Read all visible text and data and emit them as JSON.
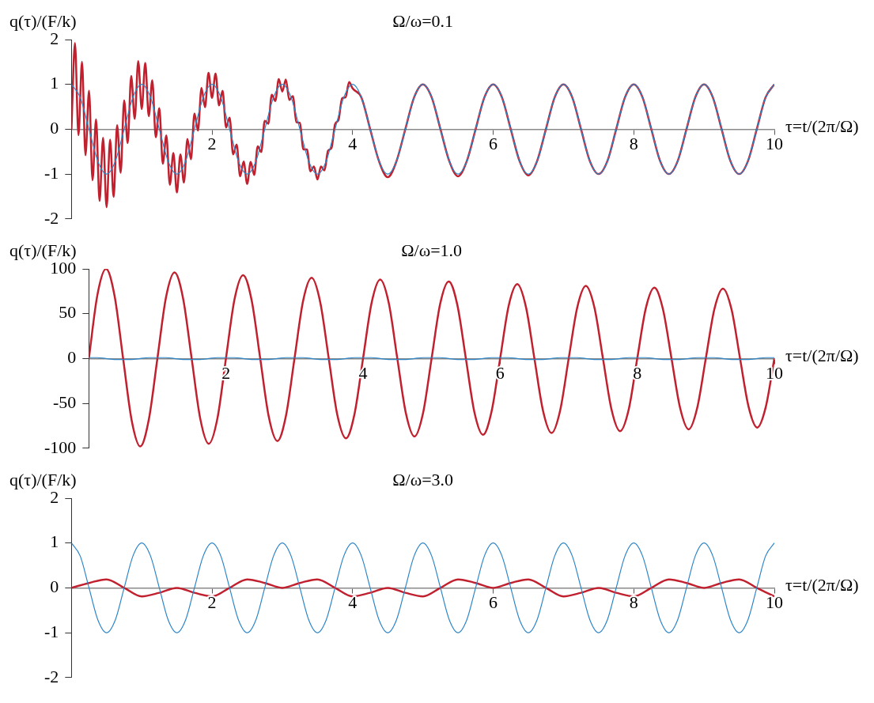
{
  "chart_data": [
    {
      "type": "line",
      "title": "Ω/ω=0.1",
      "xlabel": "τ=t/(2π/Ω)",
      "ylabel": "q(τ)/(F/k)",
      "xlim": [
        0,
        10
      ],
      "xticks": [
        2,
        4,
        6,
        8,
        10
      ],
      "ylim": [
        -2,
        2
      ],
      "yticks": [
        -2,
        -1,
        0,
        1,
        2
      ],
      "x": [
        0,
        0.125,
        0.25,
        0.375,
        0.5,
        0.625,
        0.75,
        0.875,
        1,
        1.125,
        1.25,
        1.375,
        1.5,
        1.625,
        1.75,
        1.875,
        2,
        2.125,
        2.25,
        2.375,
        2.5,
        2.625,
        2.75,
        2.875,
        3,
        3.125,
        3.25,
        3.375,
        3.5,
        3.625,
        3.75,
        3.875,
        4,
        4.125,
        4.25,
        4.375,
        4.5,
        4.625,
        4.75,
        4.875,
        5,
        5.125,
        5.25,
        5.375,
        5.5,
        5.625,
        5.75,
        5.875,
        6,
        6.125,
        6.25,
        6.375,
        6.5,
        6.625,
        6.75,
        6.875,
        7,
        7.125,
        7.25,
        7.375,
        7.5,
        7.625,
        7.75,
        7.875,
        8,
        8.125,
        8.25,
        8.375,
        8.5,
        8.625,
        8.75,
        8.875,
        9,
        9.125,
        9.25,
        9.375,
        9.5,
        9.625,
        9.75,
        9.875,
        10
      ],
      "series": [
        {
          "color": "#2e86c8",
          "values": [
            1,
            0.71,
            0,
            -0.71,
            -1,
            -0.71,
            0,
            0.71,
            1,
            0.71,
            0,
            -0.71,
            -1,
            -0.71,
            0,
            0.71,
            1,
            0.71,
            0,
            -0.71,
            -1,
            -0.71,
            0,
            0.71,
            1,
            0.71,
            0,
            -0.71,
            -1,
            -0.71,
            0,
            0.71,
            1,
            0.71,
            0,
            -0.71,
            -1,
            -0.71,
            0,
            0.71,
            1,
            0.71,
            0,
            -0.71,
            -1,
            -0.71,
            0,
            0.71,
            1,
            0.71,
            0,
            -0.71,
            -1,
            -0.71,
            0,
            0.71,
            1,
            0.71,
            0,
            -0.71,
            -1,
            -0.71,
            0,
            0.71,
            1,
            0.71,
            0,
            -0.71,
            -1,
            -0.71,
            0,
            0.71,
            1,
            0.71,
            0,
            -0.71,
            -1,
            -0.71,
            0,
            0.71,
            1
          ]
        },
        {
          "color": "#c1212f",
          "x": [
            0,
            0.05,
            0.1,
            0.15,
            0.2,
            0.25,
            0.3,
            0.35,
            0.4,
            0.45,
            0.5,
            0.55,
            0.6,
            0.65,
            0.7,
            0.75,
            0.8,
            0.85,
            0.9,
            0.95,
            1,
            1.05,
            1.1,
            1.15,
            1.2,
            1.25,
            1.3,
            1.35,
            1.4,
            1.45,
            1.5,
            1.55,
            1.6,
            1.65,
            1.7,
            1.75,
            1.8,
            1.85,
            1.9,
            1.95,
            2,
            2.05,
            2.1,
            2.15,
            2.2,
            2.25,
            2.3,
            2.35,
            2.4,
            2.45,
            2.5,
            2.55,
            2.6,
            2.65,
            2.7,
            2.75,
            2.8,
            2.85,
            2.9,
            2.95,
            3,
            3.05,
            3.1,
            3.15,
            3.2,
            3.25,
            3.3,
            3.35,
            3.4,
            3.45,
            3.5,
            3.55,
            3.6,
            3.65,
            3.7,
            3.75,
            3.8,
            3.85,
            3.9,
            3.95,
            4,
            4.125,
            4.25,
            4.375,
            4.5,
            4.625,
            4.75,
            4.875,
            5,
            5.125,
            5.25,
            5.375,
            5.5,
            5.625,
            5.75,
            5.875,
            6,
            6.125,
            6.25,
            6.375,
            6.5,
            6.625,
            6.75,
            6.875,
            7,
            7.125,
            7.25,
            7.375,
            7.5,
            7.625,
            7.75,
            7.875,
            8,
            8.125,
            8.25,
            8.375,
            8.5,
            8.625,
            8.75,
            8.875,
            9,
            9.125,
            9.25,
            9.375,
            9.5,
            9.625,
            9.75,
            9.875,
            10
          ],
          "values": [
            0,
            1.92,
            -0.13,
            1.5,
            -0.58,
            0.86,
            -1.14,
            0.22,
            -1.6,
            -0.19,
            -1.74,
            -0.23,
            -1.51,
            0.09,
            -0.97,
            0.64,
            -0.31,
            1.19,
            0.23,
            1.52,
            0.45,
            1.48,
            0.29,
            1.09,
            -0.18,
            0.47,
            -0.77,
            -0.14,
            -1.24,
            -0.53,
            -1.41,
            -0.56,
            -1.19,
            -0.22,
            -0.67,
            0.35,
            -0.03,
            0.92,
            0.49,
            1.26,
            0.7,
            1.24,
            0.53,
            0.86,
            0.04,
            0.26,
            -0.56,
            -0.34,
            -1.05,
            -0.72,
            -1.22,
            -0.73,
            -1.02,
            -0.38,
            -0.51,
            0.19,
            0.12,
            0.77,
            0.63,
            1.12,
            0.84,
            1.11,
            0.65,
            0.74,
            0.16,
            0.14,
            -0.45,
            -0.45,
            -0.94,
            -0.83,
            -1.12,
            -0.83,
            -0.92,
            -0.48,
            -0.42,
            0.11,
            0.21,
            0.69,
            0.71,
            1.05,
            0.91,
            0.71,
            0,
            -0.71,
            -1.07,
            -0.71,
            0,
            0.71,
            1,
            0.71,
            0,
            -0.71,
            -1.05,
            -0.71,
            0,
            0.71,
            1,
            0.71,
            0,
            -0.71,
            -1.03,
            -0.71,
            0,
            0.71,
            1,
            0.71,
            0,
            -0.71,
            -1,
            -0.71,
            0,
            0.71,
            1,
            0.71,
            0,
            -0.71,
            -1,
            -0.71,
            0,
            0.71,
            1,
            0.71,
            0,
            -0.71,
            -1,
            -0.71,
            0,
            0.71,
            1
          ]
        }
      ]
    },
    {
      "type": "line",
      "title": "Ω/ω=1.0",
      "xlabel": "τ=t/(2π/Ω)",
      "ylabel": "q(τ)/(F/k)",
      "xlim": [
        0,
        10
      ],
      "xticks": [
        2,
        4,
        6,
        8,
        10
      ],
      "ylim": [
        -100,
        100
      ],
      "yticks": [
        -100,
        -50,
        0,
        50,
        100
      ],
      "x": [
        0,
        0.125,
        0.25,
        0.375,
        0.5,
        0.625,
        0.75,
        0.875,
        1,
        1.125,
        1.25,
        1.375,
        1.5,
        1.625,
        1.75,
        1.875,
        2,
        2.125,
        2.25,
        2.375,
        2.5,
        2.625,
        2.75,
        2.875,
        3,
        3.125,
        3.25,
        3.375,
        3.5,
        3.625,
        3.75,
        3.875,
        4,
        4.125,
        4.25,
        4.375,
        4.5,
        4.625,
        4.75,
        4.875,
        5,
        5.125,
        5.25,
        5.375,
        5.5,
        5.625,
        5.75,
        5.875,
        6,
        6.125,
        6.25,
        6.375,
        6.5,
        6.625,
        6.75,
        6.875,
        7,
        7.125,
        7.25,
        7.375,
        7.5,
        7.625,
        7.75,
        7.875,
        8,
        8.125,
        8.25,
        8.375,
        8.5,
        8.625,
        8.75,
        8.875,
        9,
        9.125,
        9.25,
        9.375,
        9.5,
        9.625,
        9.75,
        9.875,
        10
      ],
      "series": [
        {
          "color": "#2e86c8",
          "values": [
            1,
            1,
            0,
            -1,
            -1,
            -1,
            0,
            1,
            1,
            1,
            0,
            -1,
            -1,
            -1,
            0,
            1,
            1,
            1,
            0,
            -1,
            -1,
            -1,
            0,
            1,
            1,
            1,
            0,
            -1,
            -1,
            -1,
            0,
            1,
            1,
            1,
            0,
            -1,
            -1,
            -1,
            0,
            1,
            1,
            1,
            0,
            -1,
            -1,
            -1,
            0,
            1,
            1,
            1,
            0,
            -1,
            -1,
            -1,
            0,
            1,
            1,
            1,
            0,
            -1,
            -1,
            -1,
            0,
            1,
            1,
            1,
            0,
            -1,
            -1,
            -1,
            0,
            1,
            1,
            1,
            0,
            -1,
            -1,
            -1,
            0,
            1,
            1
          ]
        },
        {
          "color": "#c1212f",
          "values": [
            0,
            71,
            100,
            70,
            0,
            -69,
            -98,
            -68,
            0,
            68,
            96,
            67,
            0,
            -67,
            -95,
            -67,
            0,
            66,
            93,
            65,
            0,
            -65,
            -92,
            -64,
            0,
            64,
            90,
            63,
            0,
            -63,
            -89,
            -62,
            0,
            62,
            88,
            62,
            0,
            -61,
            -87,
            -61,
            0,
            61,
            86,
            60,
            0,
            -60,
            -85,
            -59,
            0,
            59,
            83,
            58,
            0,
            -58,
            -83,
            -58,
            0,
            57,
            81,
            57,
            0,
            -57,
            -81,
            -57,
            0,
            56,
            79,
            55,
            0,
            -55,
            -79,
            -55,
            0,
            55,
            78,
            55,
            0,
            -54,
            -77,
            -54,
            0
          ]
        }
      ]
    },
    {
      "type": "line",
      "title": "Ω/ω=3.0",
      "xlabel": "τ=t/(2π/Ω)",
      "ylabel": "q(τ)/(F/k)",
      "xlim": [
        0,
        10
      ],
      "xticks": [
        2,
        4,
        6,
        8,
        10
      ],
      "ylim": [
        -2,
        2
      ],
      "yticks": [
        -2,
        -1,
        0,
        1,
        2
      ],
      "x": [
        0,
        0.125,
        0.25,
        0.375,
        0.5,
        0.625,
        0.75,
        0.875,
        1,
        1.125,
        1.25,
        1.375,
        1.5,
        1.625,
        1.75,
        1.875,
        2,
        2.125,
        2.25,
        2.375,
        2.5,
        2.625,
        2.75,
        2.875,
        3,
        3.125,
        3.25,
        3.375,
        3.5,
        3.625,
        3.75,
        3.875,
        4,
        4.125,
        4.25,
        4.375,
        4.5,
        4.625,
        4.75,
        4.875,
        5,
        5.125,
        5.25,
        5.375,
        5.5,
        5.625,
        5.75,
        5.875,
        6,
        6.125,
        6.25,
        6.375,
        6.5,
        6.625,
        6.75,
        6.875,
        7,
        7.125,
        7.25,
        7.375,
        7.5,
        7.625,
        7.75,
        7.875,
        8,
        8.125,
        8.25,
        8.375,
        8.5,
        8.625,
        8.75,
        8.875,
        9,
        9.125,
        9.25,
        9.375,
        9.5,
        9.625,
        9.75,
        9.875,
        10
      ],
      "series": [
        {
          "color": "#2e86c8",
          "values": [
            1,
            0.71,
            0,
            -0.71,
            -1,
            -0.71,
            0,
            0.71,
            1,
            0.71,
            0,
            -0.71,
            -1,
            -0.71,
            0,
            0.71,
            1,
            0.71,
            0,
            -0.71,
            -1,
            -0.71,
            0,
            0.71,
            1,
            0.71,
            0,
            -0.71,
            -1,
            -0.71,
            0,
            0.71,
            1,
            0.71,
            0,
            -0.71,
            -1,
            -0.71,
            0,
            0.71,
            1,
            0.71,
            0,
            -0.71,
            -1,
            -0.71,
            0,
            0.71,
            1,
            0.71,
            0,
            -0.71,
            -1,
            -0.71,
            0,
            0.71,
            1,
            0.71,
            0,
            -0.71,
            -1,
            -0.71,
            0,
            0.71,
            1,
            0.71,
            0,
            -0.71,
            -1,
            -0.71,
            0,
            0.71,
            1,
            0.71,
            0,
            -0.71,
            -1,
            -0.71,
            0,
            0.71,
            1
          ]
        },
        {
          "color": "#c1212f",
          "x": [
            0,
            0.25,
            0.5,
            0.75,
            1,
            1.25,
            1.5,
            1.75,
            2,
            2.25,
            2.5,
            2.75,
            3,
            3.25,
            3.5,
            3.75,
            4,
            4.25,
            4.5,
            4.75,
            5,
            5.25,
            5.5,
            5.75,
            6,
            6.25,
            6.5,
            6.75,
            7,
            7.25,
            7.5,
            7.75,
            8,
            8.25,
            8.5,
            8.75,
            9,
            9.25,
            9.5,
            9.75,
            10
          ],
          "values": [
            0,
            0.11,
            0.19,
            0,
            -0.19,
            -0.11,
            0,
            -0.11,
            -0.19,
            0,
            0.19,
            0.11,
            0,
            0.11,
            0.19,
            0,
            -0.19,
            -0.11,
            0,
            -0.11,
            -0.19,
            0,
            0.19,
            0.11,
            0,
            0.11,
            0.19,
            0,
            -0.19,
            -0.11,
            0,
            -0.11,
            -0.19,
            0,
            0.19,
            0.11,
            0,
            0.11,
            0.19,
            0,
            -0.19
          ]
        }
      ]
    }
  ]
}
